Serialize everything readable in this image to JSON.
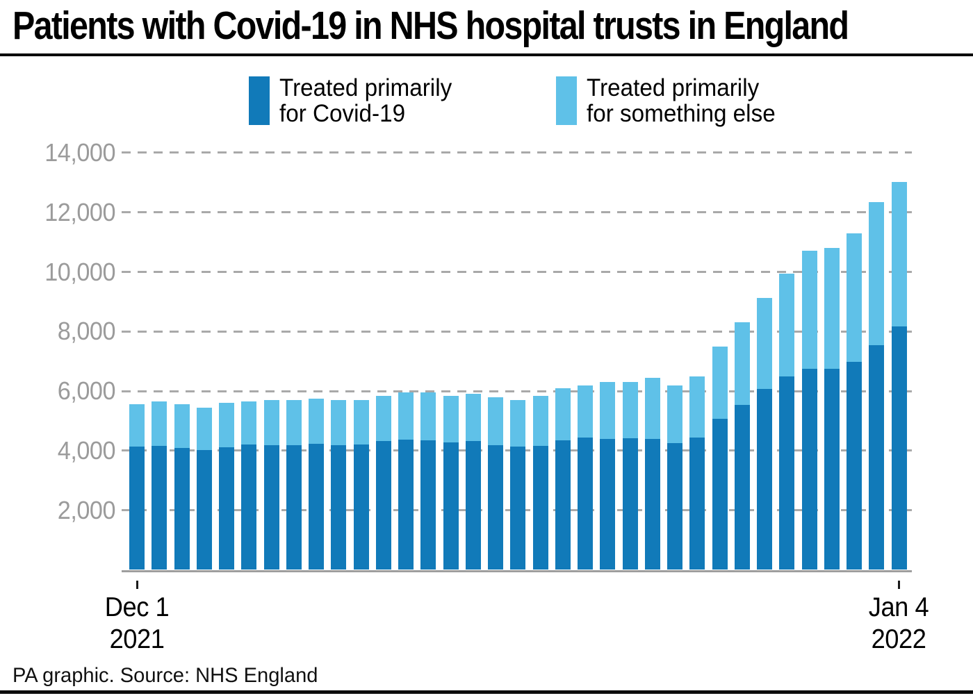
{
  "header": {
    "title": "Patients with Covid-19 in NHS hospital trusts in England"
  },
  "legend": {
    "items": [
      {
        "lines": [
          "Treated primarily",
          "for Covid-19"
        ],
        "color": "#117ab9"
      },
      {
        "lines": [
          "Treated primarily",
          "for something else"
        ],
        "color": "#5fc1e8"
      }
    ]
  },
  "footer": {
    "credit": "PA graphic. Source: NHS England"
  },
  "chart_data": {
    "type": "bar",
    "stacked": true,
    "title": "Patients with Covid-19 in NHS hospital trusts in England",
    "xlabel": "",
    "ylabel": "",
    "ylim": [
      0,
      14000
    ],
    "ytick_step": 2000,
    "grid": "dashed-horizontal",
    "legend_position": "top",
    "yticks": {
      "values": [
        2000,
        4000,
        6000,
        8000,
        10000,
        12000,
        14000
      ],
      "labels": [
        "2,000",
        "4,000",
        "6,000",
        "8,000",
        "10,000",
        "12,000",
        "14,000"
      ]
    },
    "x_axis": {
      "start": {
        "line1": "Dec 1",
        "line2": "2021"
      },
      "end": {
        "line1": "Jan 4",
        "line2": "2022"
      }
    },
    "categories": [
      "Dec 1",
      "Dec 2",
      "Dec 3",
      "Dec 4",
      "Dec 5",
      "Dec 6",
      "Dec 7",
      "Dec 8",
      "Dec 9",
      "Dec 10",
      "Dec 11",
      "Dec 12",
      "Dec 13",
      "Dec 14",
      "Dec 15",
      "Dec 16",
      "Dec 17",
      "Dec 18",
      "Dec 19",
      "Dec 20",
      "Dec 21",
      "Dec 22",
      "Dec 23",
      "Dec 24",
      "Dec 25",
      "Dec 26",
      "Dec 27",
      "Dec 28",
      "Dec 29",
      "Dec 30",
      "Dec 31",
      "Jan 1",
      "Jan 2",
      "Jan 3",
      "Jan 4"
    ],
    "series": [
      {
        "name": "Treated primarily for Covid-19",
        "color": "#117ab9",
        "values": [
          4130,
          4150,
          4100,
          4030,
          4110,
          4200,
          4180,
          4190,
          4240,
          4180,
          4210,
          4320,
          4380,
          4350,
          4270,
          4320,
          4180,
          4140,
          4150,
          4350,
          4430,
          4390,
          4420,
          4390,
          4250,
          4450,
          5070,
          5530,
          6080,
          6500,
          6740,
          6750,
          6980,
          7530,
          8180
        ]
      },
      {
        "name": "Treated primarily for something else",
        "color": "#5fc1e8",
        "values": [
          1420,
          1500,
          1450,
          1420,
          1490,
          1450,
          1520,
          1510,
          1510,
          1520,
          1490,
          1530,
          1570,
          1600,
          1580,
          1580,
          1620,
          1560,
          1700,
          1750,
          1770,
          1910,
          1880,
          2060,
          1950,
          2050,
          2430,
          2770,
          3040,
          3450,
          3960,
          4050,
          4320,
          4820,
          4850
        ]
      }
    ]
  }
}
